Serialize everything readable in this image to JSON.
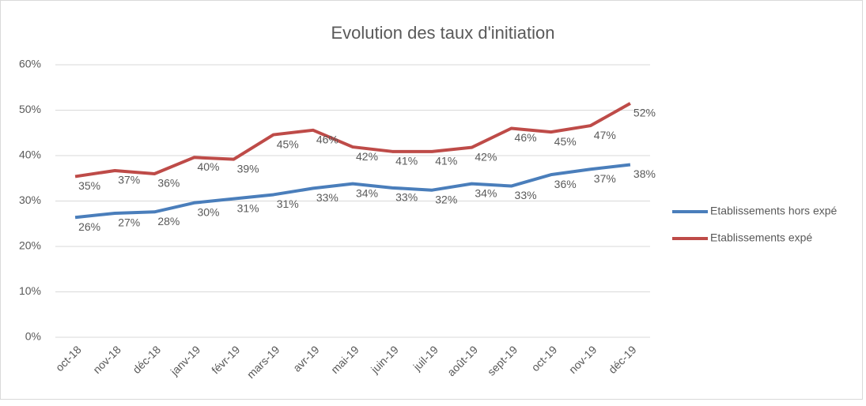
{
  "chart_data": {
    "type": "line",
    "title": "Evolution des taux d'initiation",
    "categories": [
      "oct-18",
      "nov-18",
      "déc-18",
      "janv-19",
      "févr-19",
      "mars-19",
      "avr-19",
      "mai-19",
      "juin-19",
      "juil-19",
      "août-19",
      "sept-19",
      "oct-19",
      "nov-19",
      "déc-19"
    ],
    "series": [
      {
        "name": "Etablissements hors expé",
        "color": "#4a7ebb",
        "values": [
          26.4,
          27.3,
          27.6,
          29.6,
          30.5,
          31.4,
          32.8,
          33.8,
          32.9,
          32.4,
          33.8,
          33.3,
          35.8,
          37.0,
          38.0
        ],
        "value_labels": [
          "26%",
          "27%",
          "28%",
          "30%",
          "31%",
          "31%",
          "33%",
          "34%",
          "33%",
          "32%",
          "34%",
          "33%",
          "36%",
          "37%",
          "38%"
        ]
      },
      {
        "name": "Etablissements expé",
        "color": "#be4b48",
        "values": [
          35.4,
          36.7,
          36.0,
          39.6,
          39.2,
          44.6,
          45.6,
          41.9,
          40.9,
          40.9,
          41.8,
          46.0,
          45.2,
          46.6,
          51.5
        ],
        "value_labels": [
          "35%",
          "37%",
          "36%",
          "40%",
          "39%",
          "45%",
          "46%",
          "42%",
          "41%",
          "41%",
          "42%",
          "46%",
          "45%",
          "47%",
          "52%"
        ]
      }
    ],
    "ylim": [
      0,
      60
    ],
    "yticks": [
      {
        "value": 0,
        "label": "0%"
      },
      {
        "value": 10,
        "label": "10%"
      },
      {
        "value": 20,
        "label": "20%"
      },
      {
        "value": 30,
        "label": "30%"
      },
      {
        "value": 40,
        "label": "40%"
      },
      {
        "value": 50,
        "label": "50%"
      },
      {
        "value": 60,
        "label": "60%"
      }
    ],
    "grid": true,
    "legend": "right"
  }
}
